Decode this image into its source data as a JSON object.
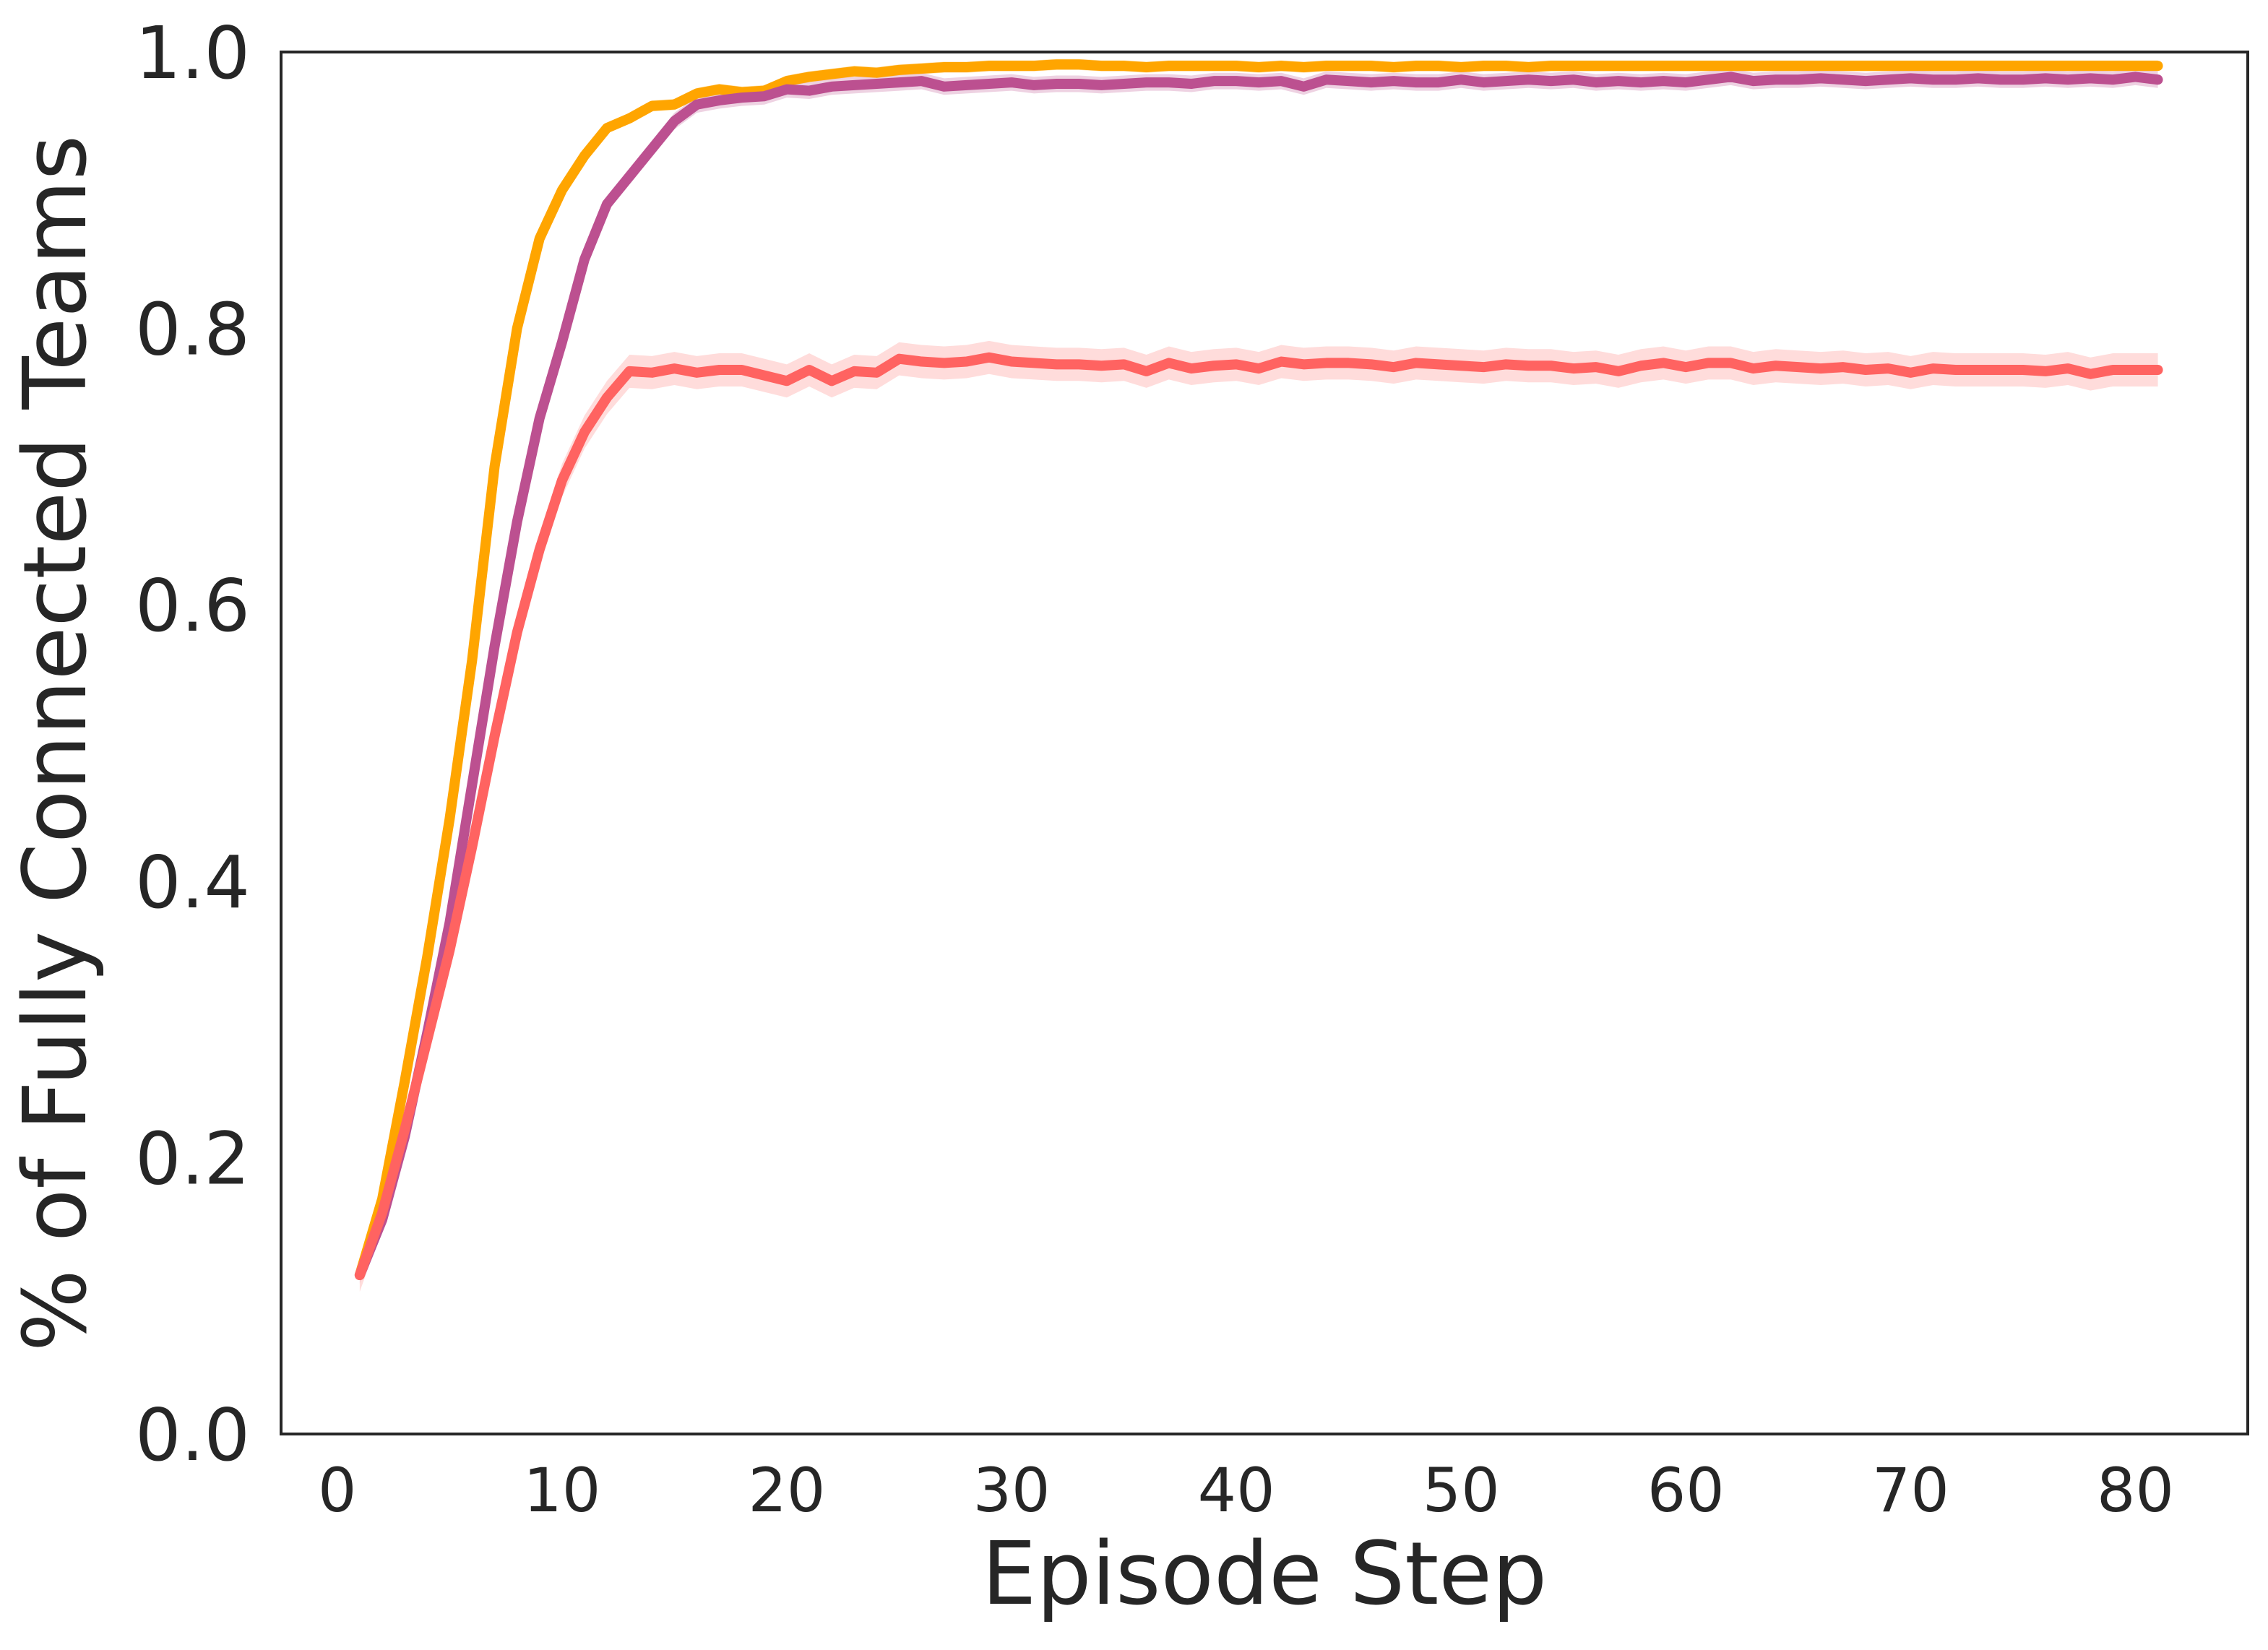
{
  "chart_data": {
    "type": "line",
    "title": "",
    "xlabel": "Episode Step",
    "ylabel": "% of Fully Connected Teams",
    "xlim": [
      -2.5,
      85
    ],
    "ylim": [
      0.0,
      1.0
    ],
    "xticks": [
      0,
      10,
      20,
      30,
      40,
      50,
      60,
      70,
      80
    ],
    "yticks": [
      0.0,
      0.2,
      0.4,
      0.6,
      0.8,
      1.0
    ],
    "xtick_labels": [
      "0",
      "10",
      "20",
      "30",
      "40",
      "50",
      "60",
      "70",
      "80"
    ],
    "ytick_labels": [
      "0.0",
      "0.2",
      "0.4",
      "0.6",
      "0.8",
      "1.0"
    ],
    "grid": false,
    "legend": "none",
    "x": [
      1,
      2,
      3,
      4,
      5,
      6,
      7,
      8,
      9,
      10,
      11,
      12,
      13,
      14,
      15,
      16,
      17,
      18,
      19,
      20,
      21,
      22,
      23,
      24,
      25,
      26,
      27,
      28,
      29,
      30,
      31,
      32,
      33,
      34,
      35,
      36,
      37,
      38,
      39,
      40,
      41,
      42,
      43,
      44,
      45,
      46,
      47,
      48,
      49,
      50,
      51,
      52,
      53,
      54,
      55,
      56,
      57,
      58,
      59,
      60,
      61,
      62,
      63,
      64,
      65,
      66,
      67,
      68,
      69,
      70,
      71,
      72,
      73,
      74,
      75,
      76,
      77,
      78,
      79,
      80,
      81
    ],
    "series": [
      {
        "color": "#ffa500",
        "band_color": "#ffd27f",
        "values": [
          0.115,
          0.17,
          0.255,
          0.345,
          0.445,
          0.56,
          0.7,
          0.8,
          0.865,
          0.9,
          0.925,
          0.945,
          0.952,
          0.961,
          0.962,
          0.97,
          0.973,
          0.971,
          0.972,
          0.979,
          0.982,
          0.984,
          0.986,
          0.985,
          0.987,
          0.988,
          0.989,
          0.989,
          0.99,
          0.99,
          0.99,
          0.991,
          0.991,
          0.99,
          0.99,
          0.989,
          0.99,
          0.99,
          0.99,
          0.99,
          0.989,
          0.99,
          0.989,
          0.99,
          0.99,
          0.99,
          0.989,
          0.99,
          0.99,
          0.989,
          0.99,
          0.99,
          0.989,
          0.99,
          0.99,
          0.99,
          0.99,
          0.99,
          0.99,
          0.99,
          0.99,
          0.99,
          0.99,
          0.99,
          0.99,
          0.99,
          0.99,
          0.99,
          0.99,
          0.99,
          0.99,
          0.99,
          0.99,
          0.99,
          0.99,
          0.99,
          0.99,
          0.99,
          0.99,
          0.99,
          0.99
        ],
        "band": 0.004
      },
      {
        "color": "#bc5090",
        "band_color": "#e3b4cf",
        "values": [
          0.115,
          0.155,
          0.215,
          0.29,
          0.37,
          0.47,
          0.57,
          0.66,
          0.735,
          0.79,
          0.85,
          0.89,
          0.91,
          0.93,
          0.95,
          0.962,
          0.965,
          0.967,
          0.968,
          0.973,
          0.972,
          0.975,
          0.976,
          0.977,
          0.978,
          0.979,
          0.975,
          0.976,
          0.977,
          0.978,
          0.976,
          0.977,
          0.977,
          0.976,
          0.977,
          0.978,
          0.978,
          0.977,
          0.979,
          0.979,
          0.978,
          0.979,
          0.975,
          0.98,
          0.979,
          0.978,
          0.979,
          0.978,
          0.978,
          0.98,
          0.978,
          0.979,
          0.98,
          0.979,
          0.98,
          0.978,
          0.979,
          0.978,
          0.979,
          0.978,
          0.98,
          0.982,
          0.979,
          0.98,
          0.98,
          0.981,
          0.98,
          0.979,
          0.98,
          0.981,
          0.98,
          0.98,
          0.981,
          0.98,
          0.98,
          0.981,
          0.98,
          0.981,
          0.98,
          0.982,
          0.98
        ],
        "band": 0.006
      },
      {
        "color": "#ff6361",
        "band_color": "#ffc4c3",
        "values": [
          0.115,
          0.16,
          0.22,
          0.285,
          0.35,
          0.425,
          0.505,
          0.58,
          0.64,
          0.69,
          0.725,
          0.75,
          0.769,
          0.768,
          0.771,
          0.768,
          0.77,
          0.77,
          0.766,
          0.762,
          0.77,
          0.762,
          0.769,
          0.768,
          0.778,
          0.776,
          0.775,
          0.776,
          0.779,
          0.776,
          0.775,
          0.774,
          0.774,
          0.773,
          0.774,
          0.769,
          0.775,
          0.771,
          0.773,
          0.774,
          0.771,
          0.776,
          0.774,
          0.775,
          0.775,
          0.774,
          0.772,
          0.775,
          0.774,
          0.773,
          0.772,
          0.774,
          0.773,
          0.773,
          0.771,
          0.772,
          0.769,
          0.773,
          0.775,
          0.772,
          0.775,
          0.775,
          0.771,
          0.773,
          0.772,
          0.771,
          0.772,
          0.77,
          0.771,
          0.768,
          0.771,
          0.77,
          0.77,
          0.77,
          0.77,
          0.769,
          0.771,
          0.767,
          0.77,
          0.77,
          0.77
        ],
        "band": 0.012
      }
    ]
  }
}
